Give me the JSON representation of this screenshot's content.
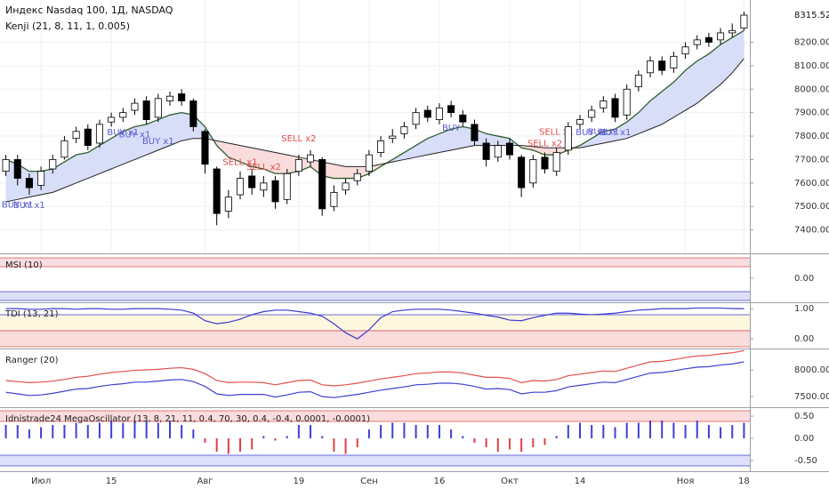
{
  "chart_data": [
    {
      "type": "candlestick",
      "title": "Индекс Nasdaq 100, 1Д, NASDAQ",
      "subtitle": "Kenji (21, 8, 11, 1, 0.005)",
      "categories": [
        null,
        null,
        null,
        "Июл",
        null,
        null,
        null,
        null,
        null,
        "15",
        null,
        null,
        null,
        null,
        null,
        null,
        null,
        "Авг",
        null,
        null,
        null,
        null,
        null,
        null,
        null,
        "19",
        null,
        null,
        null,
        null,
        null,
        "Сен",
        null,
        null,
        null,
        null,
        null,
        "16",
        null,
        null,
        null,
        null,
        null,
        "Окт",
        null,
        null,
        null,
        null,
        null,
        "14",
        null,
        null,
        null,
        null,
        null,
        null,
        null,
        null,
        "Ноя",
        null,
        null,
        null,
        null,
        "18"
      ],
      "open": [
        7650,
        7700,
        7620,
        7590,
        7660,
        7710,
        7790,
        7830,
        7770,
        7860,
        7880,
        7910,
        7950,
        7880,
        7950,
        7980,
        7950,
        7820,
        7660,
        7480,
        7550,
        7630,
        7570,
        7610,
        7530,
        7650,
        7690,
        7700,
        7500,
        7570,
        7610,
        7650,
        7730,
        7790,
        7810,
        7850,
        7910,
        7870,
        7930,
        7890,
        7850,
        7770,
        7710,
        7770,
        7710,
        7600,
        7710,
        7650,
        7740,
        7850,
        7880,
        7920,
        7960,
        7890,
        8010,
        8070,
        8120,
        8090,
        8150,
        8190,
        8220,
        8210,
        8240,
        8260
      ],
      "high": [
        7720,
        7720,
        7640,
        7670,
        7720,
        7800,
        7840,
        7850,
        7870,
        7900,
        7920,
        7960,
        7970,
        7980,
        7990,
        8000,
        7960,
        7830,
        7670,
        7570,
        7650,
        7660,
        7630,
        7630,
        7660,
        7720,
        7740,
        7710,
        7590,
        7620,
        7660,
        7740,
        7800,
        7830,
        7860,
        7920,
        7930,
        7940,
        7950,
        7910,
        7870,
        7790,
        7780,
        7790,
        7720,
        7720,
        7730,
        7750,
        7860,
        7890,
        7930,
        7970,
        7980,
        8020,
        8080,
        8140,
        8140,
        8160,
        8200,
        8230,
        8240,
        8260,
        8280,
        8330
      ],
      "low": [
        7630,
        7590,
        7550,
        7570,
        7640,
        7700,
        7770,
        7740,
        7750,
        7840,
        7860,
        7890,
        7850,
        7860,
        7930,
        7930,
        7820,
        7640,
        7420,
        7450,
        7530,
        7550,
        7540,
        7490,
        7510,
        7630,
        7670,
        7460,
        7480,
        7550,
        7590,
        7630,
        7710,
        7770,
        7790,
        7830,
        7860,
        7850,
        7880,
        7840,
        7760,
        7670,
        7690,
        7700,
        7540,
        7580,
        7640,
        7630,
        7720,
        7830,
        7860,
        7900,
        7860,
        7870,
        7990,
        8050,
        8060,
        8070,
        8130,
        8170,
        8180,
        8190,
        8220,
        8250
      ],
      "close": [
        7700,
        7620,
        7580,
        7650,
        7700,
        7780,
        7820,
        7760,
        7850,
        7880,
        7900,
        7940,
        7870,
        7960,
        7970,
        7950,
        7840,
        7680,
        7470,
        7540,
        7620,
        7580,
        7600,
        7520,
        7640,
        7700,
        7720,
        7490,
        7560,
        7600,
        7640,
        7720,
        7780,
        7800,
        7840,
        7900,
        7880,
        7920,
        7900,
        7860,
        7780,
        7700,
        7760,
        7720,
        7580,
        7700,
        7660,
        7730,
        7840,
        7870,
        7910,
        7950,
        7880,
        8000,
        8060,
        8120,
        8080,
        8140,
        8180,
        8210,
        8200,
        8240,
        8250,
        8315.52
      ],
      "kenji_fast": [
        7700,
        7680,
        7650,
        7650,
        7660,
        7690,
        7720,
        7730,
        7760,
        7790,
        7820,
        7840,
        7850,
        7870,
        7890,
        7900,
        7890,
        7840,
        7760,
        7710,
        7690,
        7670,
        7660,
        7640,
        7640,
        7650,
        7670,
        7630,
        7620,
        7620,
        7620,
        7640,
        7670,
        7700,
        7730,
        7760,
        7790,
        7810,
        7830,
        7840,
        7830,
        7810,
        7800,
        7790,
        7750,
        7740,
        7720,
        7720,
        7740,
        7760,
        7790,
        7820,
        7830,
        7860,
        7900,
        7950,
        7990,
        8030,
        8080,
        8120,
        8150,
        8190,
        8220,
        8250
      ],
      "kenji_slow": [
        7520,
        7530,
        7540,
        7550,
        7560,
        7580,
        7600,
        7620,
        7640,
        7660,
        7680,
        7700,
        7720,
        7740,
        7760,
        7780,
        7790,
        7790,
        7780,
        7770,
        7760,
        7750,
        7740,
        7730,
        7720,
        7710,
        7700,
        7690,
        7680,
        7670,
        7670,
        7670,
        7680,
        7690,
        7700,
        7710,
        7720,
        7730,
        7740,
        7750,
        7760,
        7760,
        7760,
        7760,
        7760,
        7755,
        7750,
        7750,
        7750,
        7750,
        7760,
        7770,
        7780,
        7790,
        7810,
        7830,
        7850,
        7880,
        7910,
        7940,
        7980,
        8020,
        8070,
        8130
      ],
      "buy_signals": [
        null,
        "BUY x1",
        "BUY x1",
        null,
        null,
        null,
        null,
        null,
        null,
        null,
        "BUY x1",
        "BUY x1",
        null,
        "BUY x1",
        null,
        null,
        null,
        null,
        null,
        null,
        null,
        null,
        null,
        null,
        null,
        null,
        null,
        null,
        null,
        null,
        null,
        null,
        null,
        null,
        null,
        null,
        null,
        null,
        "BUY",
        null,
        null,
        null,
        null,
        null,
        null,
        null,
        null,
        null,
        null,
        null,
        "BUY x1",
        "BUY x1",
        "BUY x1",
        null,
        null,
        null,
        null,
        null,
        null,
        null,
        null,
        null,
        null,
        null
      ],
      "sell_signals": [
        null,
        null,
        null,
        null,
        null,
        null,
        null,
        null,
        null,
        null,
        null,
        null,
        null,
        null,
        null,
        null,
        null,
        null,
        null,
        null,
        "SELL x1",
        null,
        "SELL x2",
        null,
        null,
        "SELL x2",
        null,
        null,
        null,
        null,
        null,
        null,
        null,
        null,
        null,
        null,
        null,
        null,
        null,
        null,
        null,
        null,
        null,
        null,
        null,
        null,
        "SELL x2",
        "SELL x1",
        null,
        null,
        null,
        null,
        null,
        null,
        null,
        null,
        null,
        null,
        null,
        null,
        null,
        null,
        null,
        null
      ],
      "up_color": "#ffffff",
      "down_color": "#000000",
      "band_up_color": "#d8ddf8",
      "band_down_color": "#fadcdc",
      "buy_color": "#5a5ad2",
      "sell_color": "#e24a4a",
      "ylim": [
        7300,
        8380
      ],
      "yticks": [
        {
          "value": 7400,
          "label": "7400.00"
        },
        {
          "value": 7500,
          "label": "7500.00"
        },
        {
          "value": 7600,
          "label": "7600.00"
        },
        {
          "value": 7700,
          "label": "7700.00"
        },
        {
          "value": 7800,
          "label": "7800.00"
        },
        {
          "value": 7900,
          "label": "7900.00"
        },
        {
          "value": 8000,
          "label": "8000.00"
        },
        {
          "value": 8100,
          "label": "8100.00"
        },
        {
          "value": 8200,
          "label": "8200.00"
        }
      ],
      "grid": true
    },
    {
      "type": "band",
      "title": "MSI (10)",
      "ylim": [
        -1,
        1
      ],
      "yticks": [
        {
          "value": 0,
          "label": "0.00"
        }
      ]
    },
    {
      "type": "line",
      "title": "TDI (13, 21)",
      "color": "#3a3ad0",
      "values": [
        1.0,
        1.0,
        0.98,
        0.98,
        1.0,
        1.0,
        0.98,
        1.0,
        1.0,
        0.98,
        0.98,
        1.0,
        1.0,
        1.0,
        0.98,
        0.95,
        0.85,
        0.6,
        0.5,
        0.55,
        0.65,
        0.8,
        0.9,
        0.95,
        0.95,
        0.9,
        0.85,
        0.75,
        0.5,
        0.2,
        0.0,
        0.3,
        0.7,
        0.9,
        0.95,
        0.98,
        0.98,
        0.98,
        0.95,
        0.9,
        0.85,
        0.78,
        0.72,
        0.62,
        0.6,
        0.7,
        0.78,
        0.85,
        0.85,
        0.82,
        0.8,
        0.82,
        0.85,
        0.9,
        0.95,
        0.97,
        1.0,
        1.0,
        1.0,
        1.02,
        1.02,
        1.02,
        1.0,
        1.0
      ],
      "ylim": [
        -0.32,
        1.18
      ],
      "yticks": [
        {
          "value": 1,
          "label": "1.00"
        },
        {
          "value": 0,
          "label": "0.00"
        }
      ]
    },
    {
      "type": "line",
      "title": "Ranger (20)",
      "series": [
        {
          "color": "#e05050",
          "values": [
            7800,
            7780,
            7760,
            7770,
            7790,
            7820,
            7860,
            7880,
            7920,
            7950,
            7970,
            7990,
            8000,
            8010,
            8030,
            8040,
            8010,
            7930,
            7800,
            7760,
            7770,
            7770,
            7760,
            7720,
            7760,
            7800,
            7810,
            7720,
            7700,
            7720,
            7750,
            7790,
            7830,
            7860,
            7890,
            7930,
            7940,
            7960,
            7960,
            7940,
            7900,
            7860,
            7860,
            7840,
            7760,
            7800,
            7790,
            7820,
            7890,
            7920,
            7950,
            7980,
            7970,
            8030,
            8090,
            8150,
            8160,
            8190,
            8230,
            8260,
            8270,
            8300,
            8320,
            8360
          ]
        },
        {
          "color": "#4040d0",
          "values": [
            7580,
            7550,
            7520,
            7530,
            7560,
            7600,
            7640,
            7650,
            7690,
            7720,
            7740,
            7770,
            7770,
            7790,
            7810,
            7820,
            7780,
            7690,
            7550,
            7520,
            7540,
            7540,
            7540,
            7490,
            7530,
            7580,
            7590,
            7500,
            7480,
            7510,
            7540,
            7580,
            7620,
            7650,
            7680,
            7720,
            7730,
            7750,
            7750,
            7730,
            7690,
            7640,
            7650,
            7630,
            7550,
            7580,
            7580,
            7610,
            7680,
            7710,
            7740,
            7770,
            7760,
            7820,
            7880,
            7940,
            7950,
            7980,
            8020,
            8050,
            8060,
            8090,
            8110,
            8150
          ]
        }
      ],
      "ylim": [
        7300,
        8383
      ],
      "yticks": [
        {
          "value": 8000,
          "label": "8000.00"
        },
        {
          "value": 7500,
          "label": "7500.00"
        }
      ]
    },
    {
      "type": "bar",
      "title": "Idnistrade24 MegaOscillator (13, 8, 21, 11, 0.4, 70, 30, 0.4, -0.4, 0.0001, -0.0001)",
      "values": [
        0.3,
        0.3,
        0.2,
        0.25,
        0.3,
        0.3,
        0.35,
        0.3,
        0.35,
        0.4,
        0.35,
        0.4,
        0.4,
        0.35,
        0.4,
        0.3,
        0.2,
        -0.1,
        -0.3,
        -0.35,
        -0.3,
        -0.25,
        0.05,
        -0.05,
        0.05,
        0.3,
        0.3,
        0.05,
        -0.3,
        -0.35,
        -0.2,
        0.2,
        0.3,
        0.35,
        0.35,
        0.3,
        0.3,
        0.3,
        0.2,
        0.05,
        -0.1,
        -0.2,
        -0.3,
        -0.25,
        -0.3,
        -0.2,
        -0.15,
        0.05,
        0.3,
        0.35,
        0.3,
        0.3,
        0.25,
        0.35,
        0.35,
        0.4,
        0.4,
        0.35,
        0.3,
        0.4,
        0.3,
        0.25,
        0.3,
        0.35
      ],
      "pos_color": "#3f3fd8",
      "neg_color": "#e0404a",
      "ylim": [
        -0.74,
        0.68
      ],
      "yticks": [
        {
          "value": 0.5,
          "label": "0.50"
        },
        {
          "value": 0,
          "label": "0.00"
        },
        {
          "value": -0.5,
          "label": "-0.50"
        }
      ]
    }
  ]
}
